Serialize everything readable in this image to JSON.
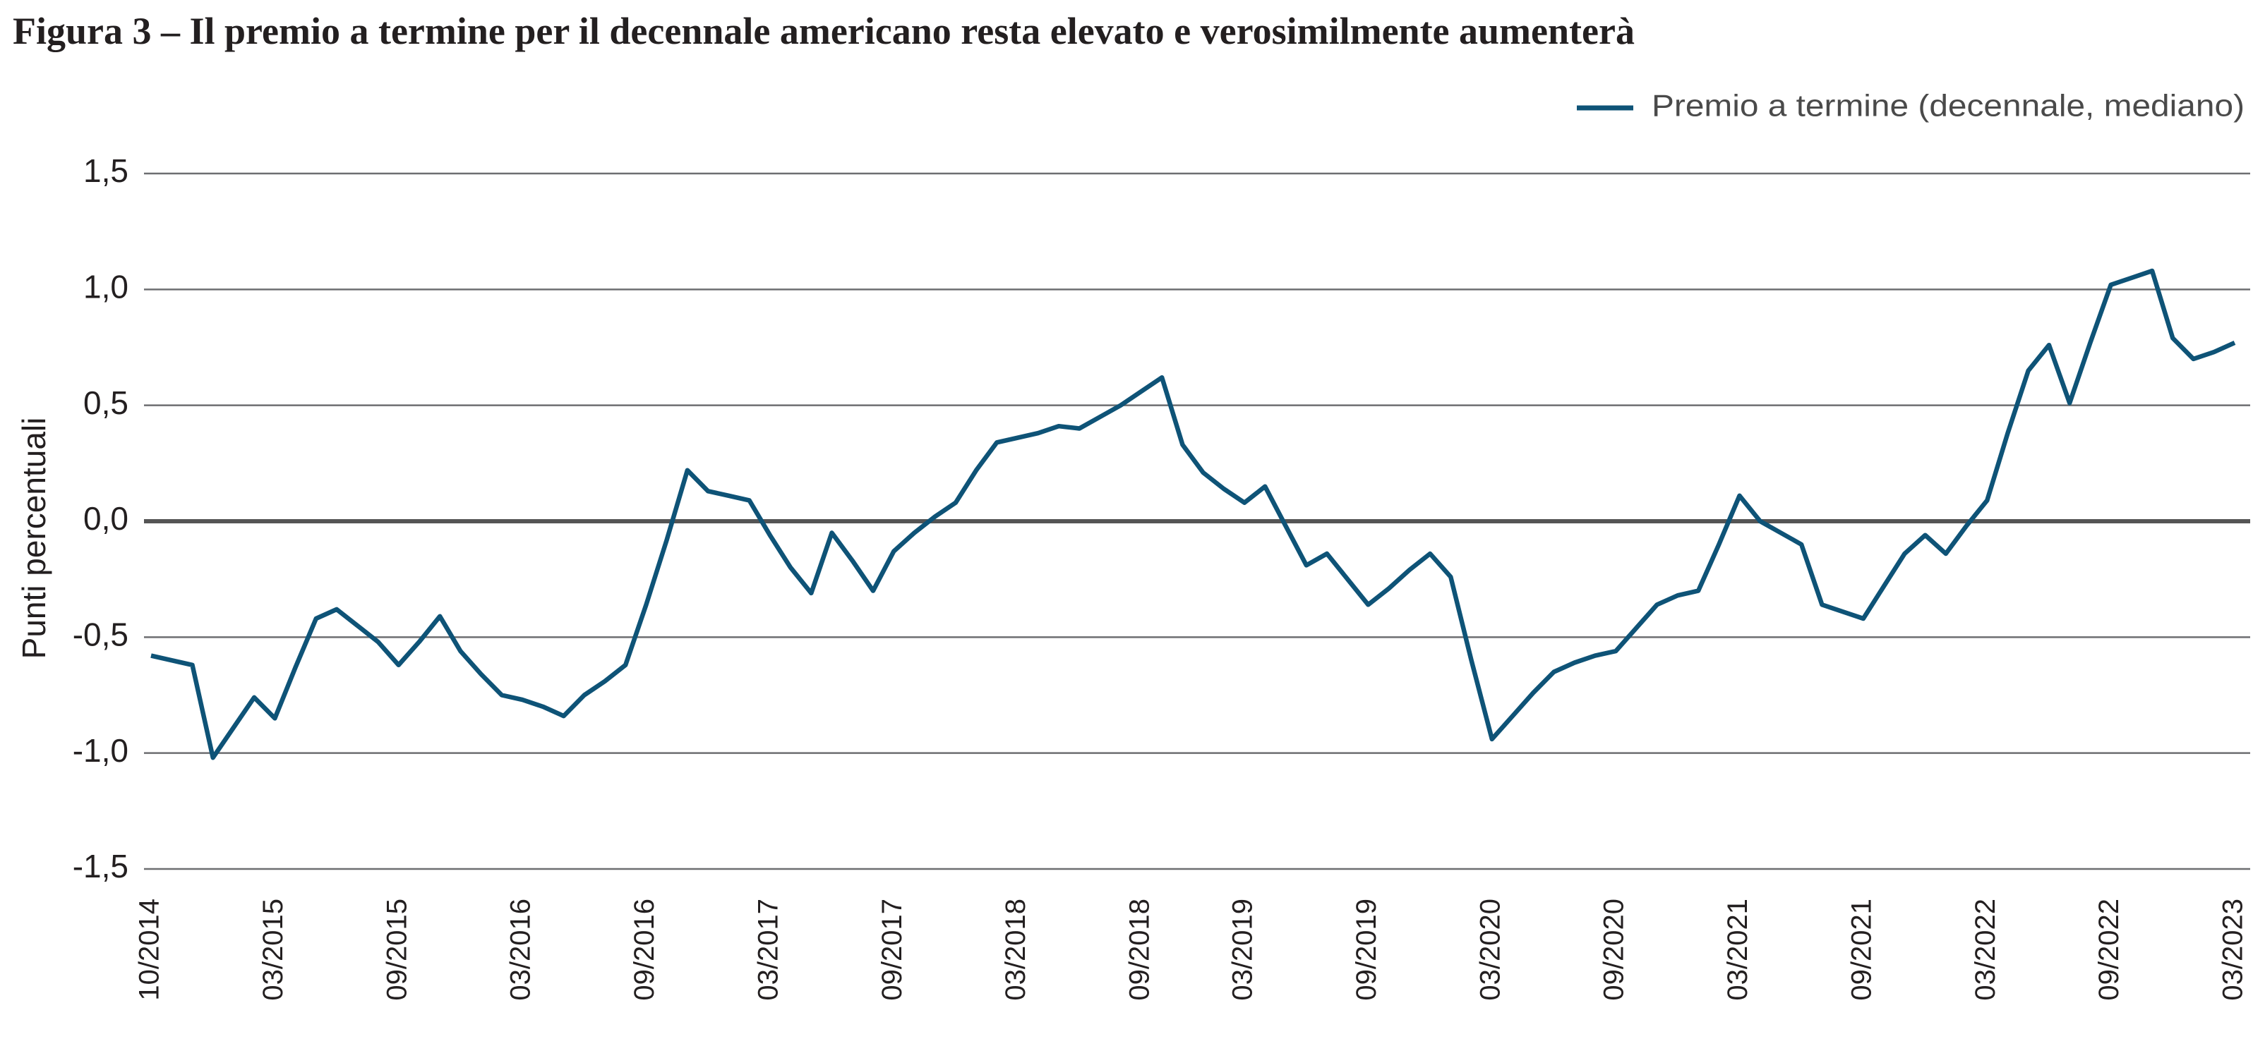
{
  "chart_data": {
    "type": "line",
    "title": "Figura 3 – Il premio a termine per il decennale americano resta elevato e verosimilmente aumenterà",
    "y_label": "Punti percentuali",
    "legend": "top-right",
    "grid": true,
    "categories": [
      "10/2014",
      null,
      null,
      null,
      null,
      null,
      "03/2015",
      null,
      null,
      null,
      null,
      null,
      "09/2015",
      null,
      null,
      null,
      null,
      null,
      "03/2016",
      null,
      null,
      null,
      null,
      null,
      "09/2016",
      null,
      null,
      null,
      null,
      null,
      "03/2017",
      null,
      null,
      null,
      null,
      null,
      "09/2017",
      null,
      null,
      null,
      null,
      null,
      "03/2018",
      null,
      null,
      null,
      null,
      null,
      "09/2018",
      null,
      null,
      null,
      null,
      "03/2019",
      null,
      null,
      null,
      null,
      null,
      "09/2019",
      null,
      null,
      null,
      null,
      null,
      "03/2020",
      null,
      null,
      null,
      null,
      null,
      "09/2020",
      null,
      null,
      null,
      null,
      null,
      "03/2021",
      null,
      null,
      null,
      null,
      null,
      "09/2021",
      null,
      null,
      null,
      null,
      null,
      "03/2022",
      null,
      null,
      null,
      null,
      null,
      "09/2022",
      null,
      null,
      null,
      null,
      null,
      "03/2023"
    ],
    "series": [
      {
        "name": "Premio a termine (decennale, mediano)",
        "color": "#0e5377",
        "values": [
          -0.58,
          -0.6,
          -0.62,
          -1.02,
          -0.89,
          -0.76,
          -0.85,
          -0.63,
          -0.42,
          -0.38,
          -0.45,
          -0.52,
          -0.62,
          -0.52,
          -0.41,
          -0.56,
          -0.66,
          -0.75,
          -0.77,
          -0.8,
          -0.84,
          -0.75,
          -0.69,
          -0.62,
          -0.36,
          -0.08,
          0.22,
          0.13,
          0.11,
          0.09,
          -0.06,
          -0.2,
          -0.31,
          -0.05,
          -0.17,
          -0.3,
          -0.13,
          -0.05,
          0.02,
          0.08,
          0.22,
          0.34,
          0.36,
          0.38,
          0.41,
          0.4,
          0.45,
          0.5,
          0.56,
          0.62,
          0.33,
          0.21,
          0.14,
          0.08,
          0.15,
          -0.02,
          -0.19,
          -0.14,
          -0.25,
          -0.36,
          -0.29,
          -0.21,
          -0.14,
          -0.24,
          -0.6,
          -0.94,
          -0.84,
          -0.74,
          -0.65,
          -0.61,
          -0.58,
          -0.56,
          -0.46,
          -0.36,
          -0.32,
          -0.3,
          -0.1,
          0.11,
          0.0,
          -0.05,
          -0.1,
          -0.36,
          -0.39,
          -0.42,
          -0.28,
          -0.14,
          -0.06,
          -0.14,
          -0.02,
          0.09,
          0.38,
          0.65,
          0.76,
          0.51,
          0.77,
          1.02,
          1.05,
          1.08,
          0.79,
          0.7,
          0.73,
          0.77
        ]
      }
    ],
    "ylim": [
      -1.5,
      1.5
    ],
    "yticks": [
      {
        "value": -1.5,
        "label": "-1,5"
      },
      {
        "value": -1,
        "label": "-1,0"
      },
      {
        "value": -0.5,
        "label": "-0,5"
      },
      {
        "value": 0,
        "label": "0,0"
      },
      {
        "value": 0.5,
        "label": "0,5"
      },
      {
        "value": 1,
        "label": "1,0"
      },
      {
        "value": 1.5,
        "label": "1,5"
      }
    ]
  }
}
